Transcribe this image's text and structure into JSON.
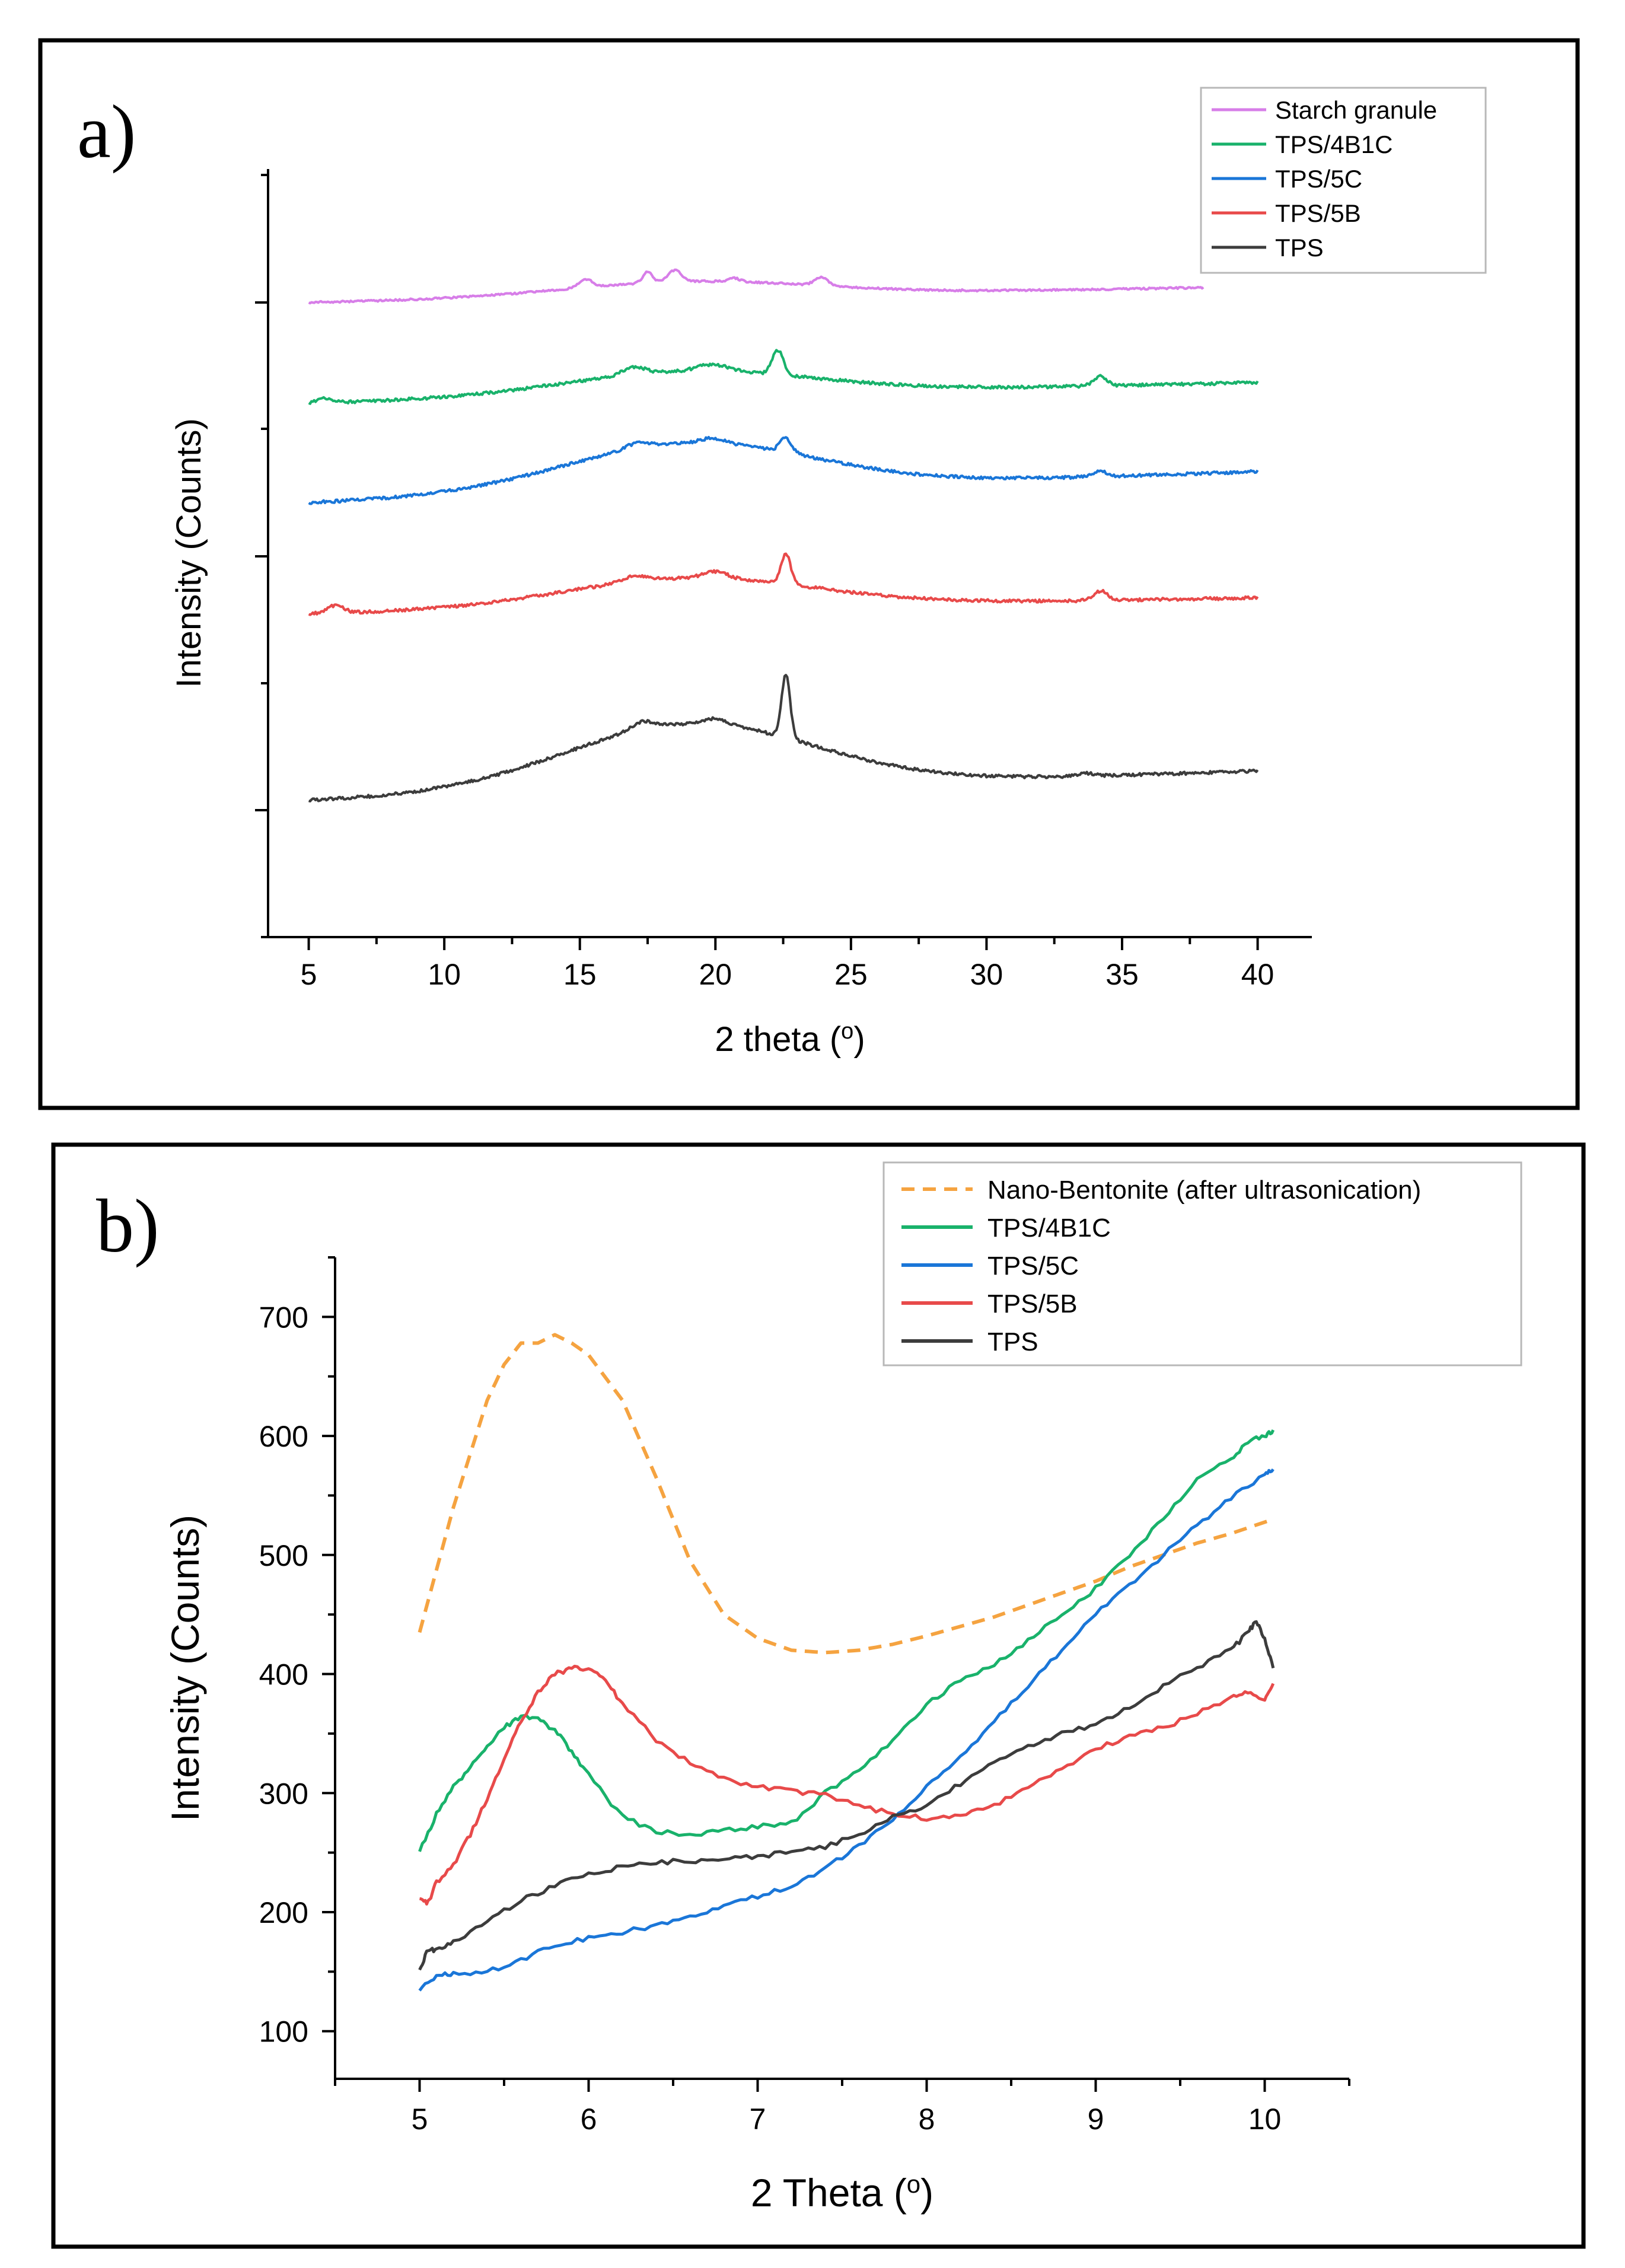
{
  "chart_data": [
    {
      "panel_label": "a)",
      "type": "line",
      "xlabel": "2 theta (",
      "xlabel_sup": "o",
      "xlabel_close": ")",
      "ylabel": "Intensity (Counts)",
      "xlim": [
        3.5,
        42
      ],
      "xticks": [
        5,
        10,
        15,
        20,
        25,
        30,
        35,
        40
      ],
      "y_tick_labels": "none",
      "y_offset_stacked": true,
      "legend_position": "top-right",
      "series": [
        {
          "name": "Starch granule",
          "color": "#d77ee8",
          "x_range": [
            5,
            38
          ],
          "baseline": [
            [
              5,
              0
            ],
            12,
            0.4,
            38,
            0.2
          ],
          "peaks": [
            [
              15.2,
              1.0,
              0.35
            ],
            [
              17.5,
              1.3,
              0.25
            ],
            [
              18.5,
              1.4,
              0.35
            ],
            [
              20.7,
              0.4,
              0.3
            ],
            [
              23.9,
              1.0,
              0.35
            ]
          ]
        },
        {
          "name": "TPS/4B1C",
          "color": "#19b26b",
          "x_range": [
            5,
            40
          ],
          "peaks": [
            [
              5.6,
              0.5,
              0.4
            ],
            [
              17.0,
              0.8,
              0.6
            ],
            [
              19.9,
              0.7,
              0.8
            ],
            [
              22.3,
              2.6,
              0.3
            ],
            [
              34.2,
              1.0,
              0.35
            ]
          ]
        },
        {
          "name": "TPS/5C",
          "color": "#1a76d8",
          "x_range": [
            5,
            40
          ],
          "peaks": [
            [
              17.1,
              0.6,
              0.6
            ],
            [
              19.9,
              0.5,
              0.6
            ],
            [
              22.6,
              1.5,
              0.3
            ],
            [
              34.2,
              0.6,
              0.35
            ]
          ]
        },
        {
          "name": "TPS/5B",
          "color": "#e84a4a",
          "x_range": [
            5,
            40
          ],
          "peaks": [
            [
              6.0,
              0.8,
              0.4
            ],
            [
              17.0,
              0.6,
              0.6
            ],
            [
              20.0,
              0.7,
              0.6
            ],
            [
              22.6,
              3.2,
              0.25
            ],
            [
              34.2,
              1.0,
              0.35
            ]
          ]
        },
        {
          "name": "TPS",
          "color": "#3c3c3c",
          "x_range": [
            5,
            40
          ],
          "peaks": [
            [
              17.3,
              0.8,
              0.6
            ],
            [
              20.0,
              0.6,
              0.6
            ],
            [
              22.6,
              6.7,
              0.22
            ],
            [
              33.7,
              0.3,
              0.4
            ]
          ]
        }
      ]
    },
    {
      "panel_label": "b)",
      "type": "line",
      "xlabel": "2 Theta (",
      "xlabel_sup": "o",
      "xlabel_close": ")",
      "ylabel": "Intensity (Counts)",
      "xlim": [
        4.5,
        10.5
      ],
      "ylim": [
        60,
        750
      ],
      "xticks": [
        5,
        6,
        7,
        8,
        9,
        10
      ],
      "yticks": [
        100,
        200,
        300,
        400,
        500,
        600,
        700
      ],
      "legend_position": "top-right",
      "series": [
        {
          "name": "Nano-Bentonite (after ultrasonication)",
          "color": "#f5a340",
          "dashed": true,
          "x": [
            5.0,
            5.2,
            5.4,
            5.5,
            5.6,
            5.7,
            5.8,
            5.9,
            6.0,
            6.2,
            6.4,
            6.6,
            6.8,
            7.0,
            7.2,
            7.4,
            7.6,
            7.8,
            8.0,
            8.2,
            8.4,
            8.6,
            8.8,
            9.0,
            9.2,
            9.4,
            9.6,
            9.8,
            10.05
          ],
          "y": [
            435,
            540,
            630,
            660,
            678,
            678,
            685,
            678,
            668,
            630,
            565,
            495,
            450,
            430,
            420,
            418,
            420,
            425,
            432,
            440,
            448,
            458,
            468,
            478,
            490,
            500,
            510,
            518,
            530
          ]
        },
        {
          "name": "TPS/4B1C",
          "color": "#19b26b",
          "x": [
            5.0,
            5.1,
            5.2,
            5.3,
            5.4,
            5.5,
            5.6,
            5.7,
            5.8,
            5.9,
            6.0,
            6.2,
            6.4,
            6.6,
            6.8,
            7.0,
            7.2,
            7.4,
            7.6,
            7.8,
            8.0,
            8.2,
            8.4,
            8.6,
            8.8,
            9.0,
            9.2,
            9.4,
            9.6,
            9.8,
            9.9,
            10.0,
            10.05
          ],
          "y": [
            252,
            282,
            305,
            322,
            340,
            355,
            364,
            362,
            353,
            335,
            315,
            280,
            268,
            265,
            268,
            272,
            275,
            300,
            320,
            345,
            375,
            395,
            408,
            428,
            450,
            472,
            500,
            530,
            565,
            580,
            595,
            600,
            605
          ]
        },
        {
          "name": "TPS/5C",
          "color": "#1a76d8",
          "x": [
            5.0,
            5.1,
            5.2,
            5.4,
            5.6,
            5.8,
            6.0,
            6.2,
            6.4,
            6.6,
            6.8,
            7.0,
            7.2,
            7.4,
            7.6,
            7.8,
            8.0,
            8.2,
            8.4,
            8.6,
            8.8,
            9.0,
            9.2,
            9.4,
            9.6,
            9.8,
            10.0,
            10.05
          ],
          "y": [
            135,
            147,
            148,
            150,
            160,
            172,
            178,
            183,
            189,
            197,
            205,
            213,
            222,
            237,
            255,
            278,
            305,
            330,
            360,
            390,
            420,
            450,
            475,
            500,
            525,
            548,
            568,
            572
          ]
        },
        {
          "name": "TPS/5B",
          "color": "#e84a4a",
          "x": [
            5.0,
            5.05,
            5.1,
            5.2,
            5.3,
            5.4,
            5.5,
            5.6,
            5.7,
            5.8,
            5.9,
            6.0,
            6.1,
            6.2,
            6.4,
            6.6,
            6.8,
            7.0,
            7.2,
            7.4,
            7.6,
            7.8,
            8.0,
            8.2,
            8.4,
            8.6,
            8.8,
            9.0,
            9.2,
            9.4,
            9.6,
            9.8,
            9.9,
            10.0,
            10.05
          ],
          "y": [
            212,
            208,
            225,
            240,
            265,
            295,
            330,
            360,
            385,
            400,
            405,
            405,
            395,
            375,
            345,
            325,
            312,
            305,
            302,
            298,
            290,
            282,
            279,
            280,
            290,
            305,
            320,
            338,
            347,
            355,
            367,
            380,
            385,
            378,
            392
          ]
        },
        {
          "name": "TPS",
          "color": "#3c3c3c",
          "x": [
            5.0,
            5.05,
            5.1,
            5.2,
            5.4,
            5.6,
            5.8,
            6.0,
            6.2,
            6.4,
            6.6,
            6.8,
            7.0,
            7.2,
            7.4,
            7.6,
            7.8,
            8.0,
            8.2,
            8.4,
            8.6,
            8.8,
            9.0,
            9.2,
            9.4,
            9.6,
            9.8,
            9.9,
            9.95,
            10.0,
            10.05
          ],
          "y": [
            152,
            168,
            168,
            175,
            192,
            210,
            222,
            232,
            238,
            242,
            243,
            244,
            247,
            250,
            255,
            265,
            280,
            290,
            308,
            325,
            340,
            350,
            358,
            372,
            390,
            405,
            420,
            435,
            445,
            430,
            405
          ]
        }
      ]
    }
  ]
}
